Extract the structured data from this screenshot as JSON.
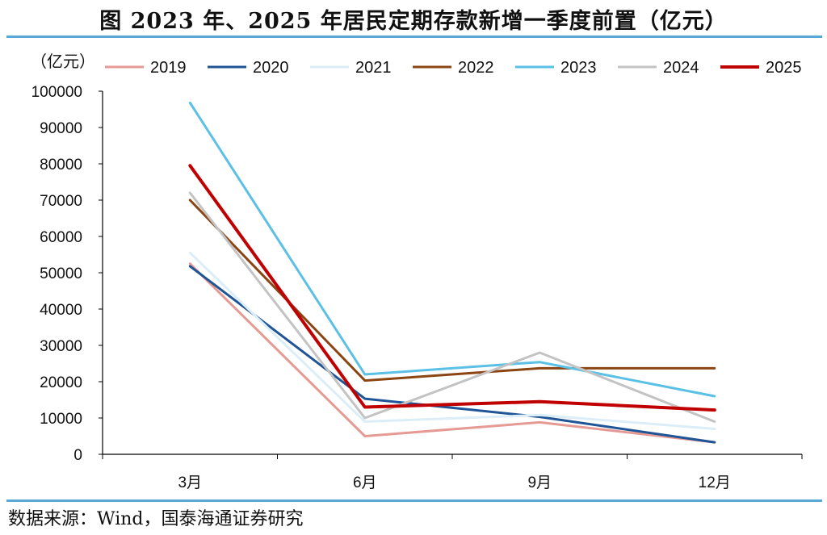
{
  "title": "图  2023 年、2025 年居民定期存款新增一季度前置（亿元）",
  "source": "数据来源：Wind，国泰海通证券研究",
  "chart_data": {
    "type": "line",
    "unit_label": "（亿元）",
    "categories": [
      "3月",
      "6月",
      "9月",
      "12月"
    ],
    "ylim": [
      0,
      100000
    ],
    "yticks": [
      0,
      10000,
      20000,
      30000,
      40000,
      50000,
      60000,
      70000,
      80000,
      90000,
      100000
    ],
    "legend_position": "top",
    "grid": false,
    "series": [
      {
        "name": "2019",
        "color": "#e59a94",
        "width": 3,
        "values": [
          52500,
          5000,
          8800,
          3300
        ]
      },
      {
        "name": "2020",
        "color": "#1f5597",
        "width": 3,
        "values": [
          51800,
          15300,
          10300,
          3300
        ]
      },
      {
        "name": "2021",
        "color": "#dbeef7",
        "width": 3,
        "values": [
          55500,
          9000,
          10800,
          7000
        ]
      },
      {
        "name": "2022",
        "color": "#8b4513",
        "width": 3,
        "values": [
          70000,
          20300,
          23700,
          23700
        ]
      },
      {
        "name": "2023",
        "color": "#5bc0e6",
        "width": 3,
        "values": [
          96800,
          22000,
          25400,
          16000
        ]
      },
      {
        "name": "2024",
        "color": "#c3c3c3",
        "width": 3,
        "values": [
          72000,
          10000,
          28000,
          9000
        ]
      },
      {
        "name": "2025",
        "color": "#c00000",
        "width": 4,
        "values": [
          79500,
          13000,
          14500,
          12200
        ]
      }
    ]
  }
}
